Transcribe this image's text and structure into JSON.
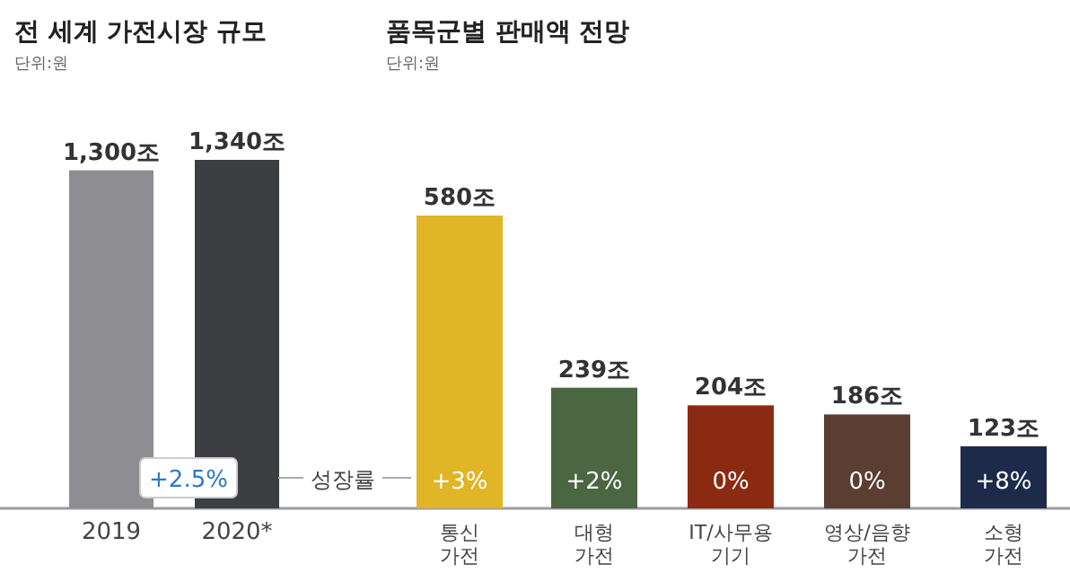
{
  "chart_data": [
    {
      "type": "bar",
      "title": "전 세계 가전시장 규모",
      "subtitle": "단위:원",
      "categories": [
        "2019",
        "2020*"
      ],
      "values": [
        1300,
        1340
      ],
      "value_labels": [
        "1,300조",
        "1,340조"
      ],
      "colors": [
        "#8e8e92",
        "#3d3e42"
      ],
      "annotations": [
        "+2.5%"
      ]
    },
    {
      "type": "bar",
      "title": "품목군별 판매액 전망",
      "subtitle": "단위:원",
      "categories": [
        "통신 가전",
        "대형 가전",
        "IT/사무용 기기",
        "영상/음향 가전",
        "소형 가전"
      ],
      "values": [
        580,
        239,
        204,
        186,
        123
      ],
      "value_labels": [
        "580조",
        "239조",
        "204조",
        "186조",
        "123조"
      ],
      "colors": [
        "#e0b526",
        "#4a6741",
        "#8b2a12",
        "#5a3e32",
        "#1e2a4a"
      ],
      "annotations": [
        "성장률",
        "+3%",
        "+2%",
        "0%",
        "0%",
        "+8%"
      ]
    }
  ]
}
